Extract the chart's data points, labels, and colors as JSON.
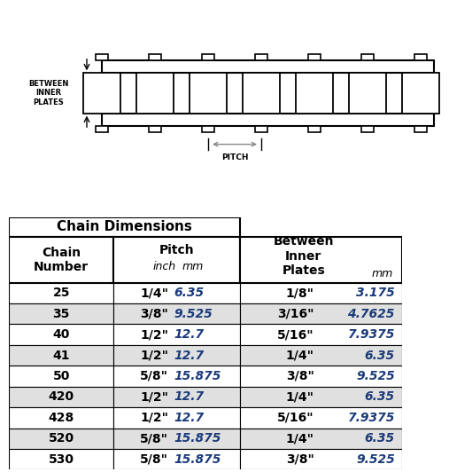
{
  "title": "Chain Dimensions",
  "rows": [
    {
      "chain": "25",
      "pitch_inch": "1/4\"",
      "pitch_mm": "6.35",
      "bip_inch": "1/8\"",
      "bip_mm": "3.175"
    },
    {
      "chain": "35",
      "pitch_inch": "3/8\"",
      "pitch_mm": "9.525",
      "bip_inch": "3/16\"",
      "bip_mm": "4.7625"
    },
    {
      "chain": "40",
      "pitch_inch": "1/2\"",
      "pitch_mm": "12.7",
      "bip_inch": "5/16\"",
      "bip_mm": "7.9375"
    },
    {
      "chain": "41",
      "pitch_inch": "1/2\"",
      "pitch_mm": "12.7",
      "bip_inch": "1/4\"",
      "bip_mm": "6.35"
    },
    {
      "chain": "50",
      "pitch_inch": "5/8\"",
      "pitch_mm": "15.875",
      "bip_inch": "3/8\"",
      "bip_mm": "9.525"
    },
    {
      "chain": "420",
      "pitch_inch": "1/2\"",
      "pitch_mm": "12.7",
      "bip_inch": "1/4\"",
      "bip_mm": "6.35"
    },
    {
      "chain": "428",
      "pitch_inch": "1/2\"",
      "pitch_mm": "12.7",
      "bip_inch": "5/16\"",
      "bip_mm": "7.9375"
    },
    {
      "chain": "520",
      "pitch_inch": "5/8\"",
      "pitch_mm": "15.875",
      "bip_inch": "1/4\"",
      "bip_mm": "6.35"
    },
    {
      "chain": "530",
      "pitch_inch": "5/8\"",
      "pitch_mm": "15.875",
      "bip_inch": "3/8\"",
      "bip_mm": "9.525"
    }
  ],
  "bg_color": "#ffffff",
  "text_color": "#000000",
  "text_color_mm": "#1a3a7a",
  "border_color": "#000000",
  "row_colors": [
    "#ffffff",
    "#e0e0e0"
  ],
  "fig_w": 5.07,
  "fig_h": 5.32,
  "dpi": 100
}
